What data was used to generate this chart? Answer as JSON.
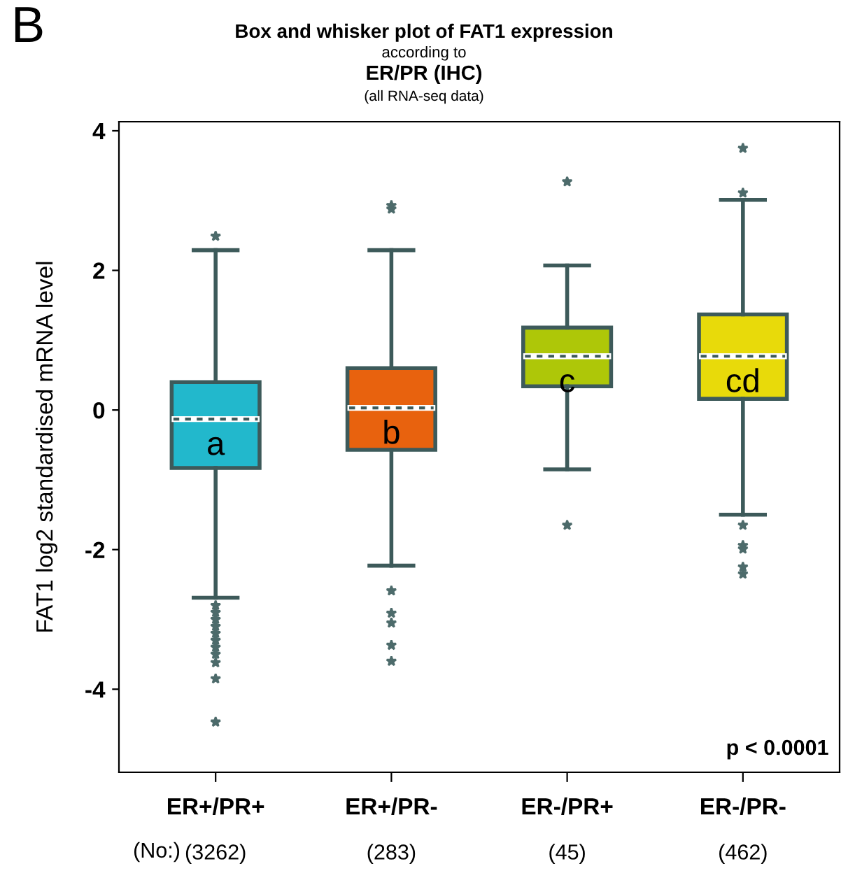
{
  "chart_data": {
    "type": "box",
    "title": "Box and whisker plot of FAT1 expression",
    "subtitle": "according to\nER/PR (IHC)\n(all RNA-seq data)",
    "ylabel": "FAT1 log2 standardised mRNA level",
    "categories": [
      "ER+/PR+",
      "ER+/PR-",
      "ER-/PR+",
      "ER-/PR-"
    ],
    "colors": [
      "#22b8cc",
      "#e8620e",
      "#aec708",
      "#e8da0a"
    ],
    "boxes": [
      {
        "low": -2.69,
        "q1": -0.83,
        "median": -0.13,
        "q3": 0.4,
        "high": 2.29,
        "outliers": [
          2.49,
          -2.8,
          -2.9,
          -3.0,
          -3.1,
          -3.2,
          -3.3,
          -3.4,
          -3.5,
          -3.62,
          -3.85,
          -4.47
        ]
      },
      {
        "low": -2.23,
        "q1": -0.57,
        "median": 0.03,
        "q3": 0.6,
        "high": 2.29,
        "outliers": [
          2.93,
          2.88,
          -2.59,
          -2.91,
          -3.05,
          -3.37,
          -3.6
        ]
      },
      {
        "low": -0.85,
        "q1": 0.34,
        "median": 0.77,
        "q3": 1.18,
        "high": 2.07,
        "outliers": [
          3.27,
          -1.65
        ]
      },
      {
        "low": -1.5,
        "q1": 0.16,
        "median": 0.77,
        "q3": 1.37,
        "high": 3.01,
        "outliers": [
          3.75,
          3.11,
          -1.65,
          -1.94,
          -1.99,
          -2.25,
          -2.35
        ]
      }
    ],
    "ylim": [
      -5.19,
      4.13
    ],
    "yticks": [
      4,
      2,
      0,
      {
        "value": -2,
        "label": "-2"
      },
      {
        "value": -4,
        "label": "-4"
      }
    ],
    "grid": false,
    "marker": "star",
    "annotations": [
      "a",
      "b",
      "c",
      "cd",
      "B",
      "p < 0.0001",
      "(No:)",
      "(3262)",
      "(283)",
      "(45)",
      "(462)"
    ]
  }
}
